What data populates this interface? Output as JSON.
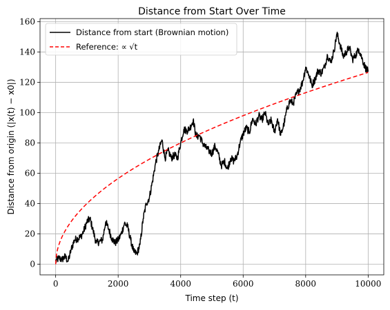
{
  "chart_data": {
    "type": "line",
    "title": "Distance from Start Over Time",
    "xlabel": "Time step (t)",
    "ylabel": "Distance from origin (|x(t) − x0|)",
    "xlim": [
      -500,
      10500
    ],
    "ylim": [
      -7,
      162
    ],
    "xticks": [
      0,
      2000,
      4000,
      6000,
      8000,
      10000
    ],
    "yticks": [
      0,
      20,
      40,
      60,
      80,
      100,
      120,
      140,
      160
    ],
    "grid": true,
    "legend_position": "top-left",
    "series": [
      {
        "name": "Distance from start (Brownian motion)",
        "color": "#000000",
        "style": "solid",
        "x": [
          0,
          100,
          200,
          300,
          400,
          500,
          600,
          700,
          800,
          900,
          1000,
          1100,
          1200,
          1300,
          1400,
          1500,
          1600,
          1700,
          1800,
          1900,
          2000,
          2100,
          2200,
          2300,
          2400,
          2500,
          2600,
          2700,
          2800,
          2900,
          3000,
          3100,
          3200,
          3300,
          3400,
          3500,
          3600,
          3700,
          3800,
          3900,
          4000,
          4100,
          4200,
          4300,
          4400,
          4500,
          4600,
          4700,
          4800,
          4900,
          5000,
          5100,
          5200,
          5300,
          5400,
          5500,
          5600,
          5700,
          5800,
          5900,
          6000,
          6100,
          6200,
          6300,
          6400,
          6500,
          6600,
          6700,
          6800,
          6900,
          7000,
          7100,
          7200,
          7300,
          7400,
          7500,
          7600,
          7700,
          7800,
          7900,
          8000,
          8100,
          8200,
          8300,
          8400,
          8500,
          8600,
          8700,
          8800,
          8900,
          9000,
          9100,
          9200,
          9300,
          9400,
          9500,
          9600,
          9700,
          9800,
          9900,
          10000
        ],
        "y": [
          2,
          4,
          3,
          5,
          2,
          10,
          16,
          17,
          18,
          22,
          28,
          30,
          22,
          14,
          15,
          16,
          28,
          23,
          17,
          14,
          16,
          20,
          27,
          25,
          16,
          8,
          7,
          13,
          30,
          40,
          44,
          55,
          67,
          75,
          82,
          70,
          75,
          70,
          72,
          70,
          80,
          89,
          88,
          90,
          95,
          84,
          85,
          80,
          77,
          75,
          73,
          78,
          73,
          65,
          68,
          63,
          70,
          68,
          71,
          80,
          86,
          90,
          87,
          96,
          92,
          98,
          95,
          100,
          92,
          95,
          87,
          96,
          85,
          92,
          102,
          108,
          106,
          112,
          115,
          120,
          130,
          125,
          118,
          122,
          128,
          126,
          130,
          138,
          133,
          140,
          152,
          145,
          137,
          140,
          143,
          135,
          138,
          142,
          136,
          130,
          127
        ]
      },
      {
        "name": "Reference: ∝ √t",
        "color": "#ff0000",
        "style": "dashed",
        "function": "sqrt",
        "coefficient": 1.265,
        "x_range": [
          0,
          10000
        ]
      }
    ]
  },
  "legend": {
    "entries": [
      {
        "label": "Distance from start (Brownian motion)"
      },
      {
        "label": "Reference: ∝ √t"
      }
    ]
  }
}
